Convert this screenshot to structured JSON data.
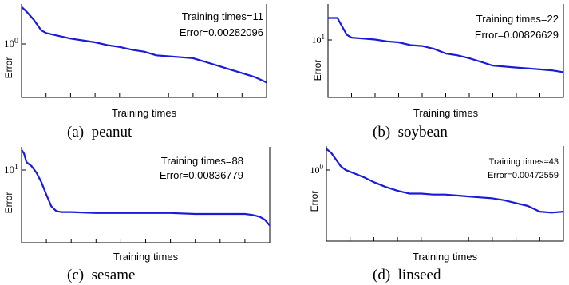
{
  "chart_data": [
    {
      "type": "line",
      "caption": "(a)  peanut",
      "xlabel": "Training times",
      "ylabel": "Error",
      "ytick_label": "10",
      "ytick_exp": "0",
      "annotation": [
        "Training times=11",
        "Error=0.00282096"
      ],
      "x": [
        0,
        0.02,
        0.05,
        0.08,
        0.1,
        0.15,
        0.2,
        0.25,
        0.3,
        0.35,
        0.4,
        0.45,
        0.5,
        0.55,
        0.6,
        0.65,
        0.7,
        0.75,
        0.8,
        0.85,
        0.9,
        0.95,
        1
      ],
      "y": [
        0.97,
        0.92,
        0.83,
        0.72,
        0.69,
        0.66,
        0.63,
        0.61,
        0.59,
        0.56,
        0.54,
        0.51,
        0.49,
        0.45,
        0.44,
        0.43,
        0.42,
        0.38,
        0.34,
        0.3,
        0.26,
        0.22,
        0.16
      ]
    },
    {
      "type": "line",
      "caption": "(b)  soybean",
      "xlabel": "Training times",
      "ylabel": "Error",
      "ytick_label": "10",
      "ytick_exp": "1",
      "annotation": [
        "Training times=22",
        "Error=0.00826629"
      ],
      "x": [
        0,
        0.04,
        0.08,
        0.1,
        0.15,
        0.2,
        0.25,
        0.3,
        0.35,
        0.4,
        0.45,
        0.5,
        0.55,
        0.6,
        0.65,
        0.7,
        0.75,
        0.8,
        0.85,
        0.9,
        0.95,
        1
      ],
      "y": [
        0.85,
        0.85,
        0.67,
        0.64,
        0.63,
        0.62,
        0.6,
        0.59,
        0.56,
        0.55,
        0.52,
        0.47,
        0.45,
        0.42,
        0.38,
        0.34,
        0.33,
        0.32,
        0.31,
        0.3,
        0.29,
        0.27
      ]
    },
    {
      "type": "line",
      "caption": "(c)  sesame",
      "xlabel": "Training times",
      "ylabel": "Error",
      "ytick_label": "10",
      "ytick_exp": "1",
      "annotation": [
        "Training times=88",
        "Error=0.00836779"
      ],
      "x": [
        0,
        0.01,
        0.02,
        0.04,
        0.06,
        0.08,
        0.1,
        0.12,
        0.14,
        0.16,
        0.2,
        0.3,
        0.4,
        0.5,
        0.6,
        0.7,
        0.8,
        0.85,
        0.9,
        0.93,
        0.96,
        0.98,
        1
      ],
      "y": [
        0.97,
        0.93,
        0.84,
        0.8,
        0.73,
        0.63,
        0.5,
        0.38,
        0.33,
        0.32,
        0.32,
        0.31,
        0.31,
        0.31,
        0.31,
        0.3,
        0.3,
        0.3,
        0.3,
        0.29,
        0.27,
        0.24,
        0.18
      ]
    },
    {
      "type": "line",
      "caption": "(d)  linseed",
      "xlabel": "Training times",
      "ylabel": "Error",
      "ytick_label": "10",
      "ytick_exp": "0",
      "annotation": [
        "Training times=43",
        "Error=0.00472559"
      ],
      "x": [
        0,
        0.02,
        0.04,
        0.06,
        0.08,
        0.12,
        0.16,
        0.2,
        0.25,
        0.3,
        0.35,
        0.4,
        0.45,
        0.5,
        0.55,
        0.6,
        0.65,
        0.7,
        0.75,
        0.8,
        0.85,
        0.9,
        0.95,
        1
      ],
      "y": [
        0.97,
        0.93,
        0.86,
        0.79,
        0.75,
        0.71,
        0.67,
        0.62,
        0.57,
        0.53,
        0.5,
        0.5,
        0.49,
        0.49,
        0.48,
        0.47,
        0.46,
        0.45,
        0.43,
        0.4,
        0.37,
        0.31,
        0.3,
        0.31
      ]
    }
  ],
  "colors": {
    "curve": "#1a1ad8",
    "axis": "#000000"
  }
}
